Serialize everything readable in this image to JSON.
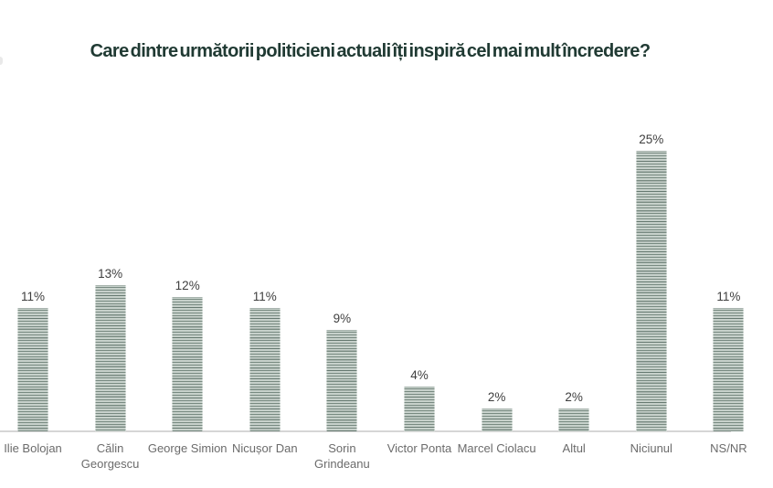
{
  "chart_data": {
    "type": "bar",
    "title": "Care dintre următorii politicieni actuali îți inspiră cel mai mult încredere?",
    "xlabel": "",
    "ylabel": "",
    "categories": [
      "Ilie Bolojan",
      "Călin Georgescu",
      "George Simion",
      "Nicușor Dan",
      "Sorin Grindeanu",
      "Victor Ponta",
      "Marcel Ciolacu",
      "Altul",
      "Niciunul",
      "NS/NR"
    ],
    "values": [
      11,
      13,
      12,
      11,
      9,
      4,
      2,
      2,
      25,
      11
    ],
    "value_labels": [
      "11%",
      "13%",
      "12%",
      "11%",
      "9%",
      "4%",
      "2%",
      "2%",
      "25%",
      "11%"
    ],
    "category_display": [
      "Ilie Bolojan",
      "Călin\nGeorgescu",
      "George Simion",
      "Nicușor Dan",
      "Sorin\nGrindeanu",
      "Victor Ponta",
      "Marcel Ciolacu",
      "Altul",
      "Niciunul",
      "NS/NR"
    ],
    "value_suffix": "%",
    "ylim": [
      0,
      25
    ],
    "grid": false,
    "legend": false,
    "colors": {
      "title": "#203a33",
      "value_label": "#3e3e3e",
      "category_label": "#6b6b6b",
      "axis_line": "#d6d6d6",
      "bar_stripe_light": "#c7d1cb",
      "bar_stripe_dark": "#788a81",
      "bar_scanline": "rgba(22,44,38,0.18)"
    }
  }
}
